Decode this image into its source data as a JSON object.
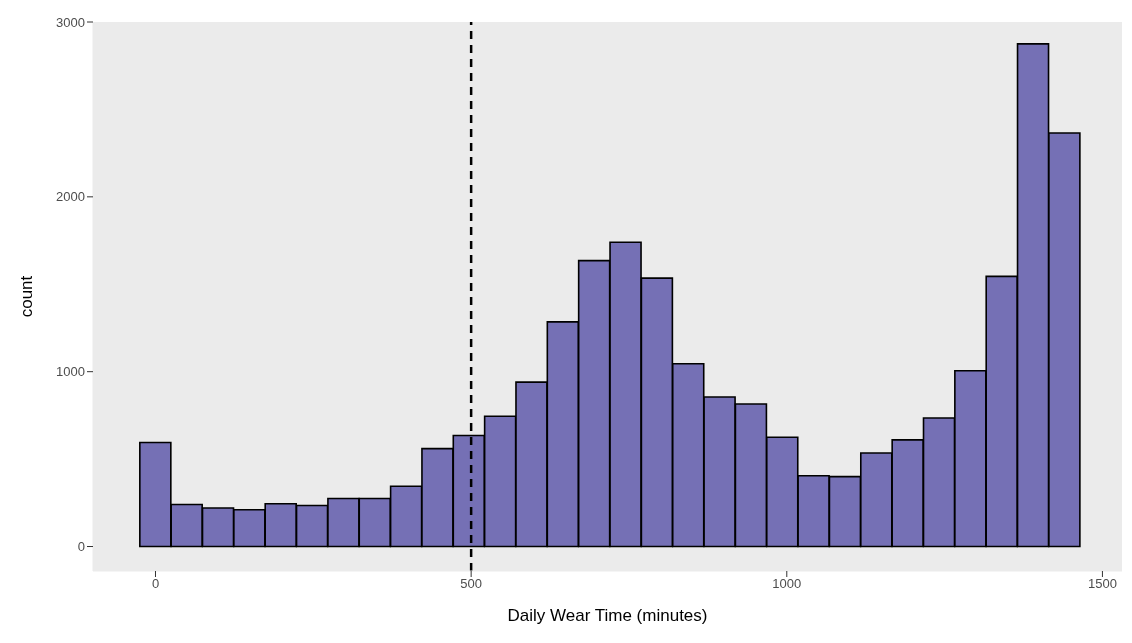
{
  "chart_data": {
    "type": "histogram",
    "xlabel": "Daily Wear Time (minutes)",
    "ylabel": "count",
    "bins": [
      -24.8,
      24.8,
      74.5,
      124.1,
      173.8,
      223.4,
      273.1,
      322.8,
      372.4,
      422.1,
      471.7,
      521.4,
      571.0,
      620.7,
      670.3,
      720.0,
      769.7,
      819.3,
      869.0,
      918.6,
      968.3,
      1017.9,
      1067.6,
      1117.2,
      1166.9,
      1216.6,
      1266.2,
      1315.9,
      1365.5,
      1415.2,
      1464.8
    ],
    "values": [
      595,
      240,
      220,
      210,
      245,
      235,
      275,
      275,
      345,
      560,
      635,
      745,
      940,
      1285,
      1635,
      1740,
      1535,
      1045,
      855,
      815,
      625,
      405,
      400,
      535,
      610,
      735,
      1005,
      1545,
      2875,
      2365
    ],
    "color": "#7570b5",
    "xlim": [
      -99,
      1531
    ],
    "xticks": [
      0,
      500,
      1000,
      1500
    ],
    "ylim": [
      -140,
      3000
    ],
    "yticks": [
      0,
      1000,
      2000,
      3000
    ],
    "grid": false,
    "ref_lines": [
      {
        "axis": "x",
        "value": 500,
        "line_style": "dashed",
        "color": "#000000"
      }
    ]
  }
}
